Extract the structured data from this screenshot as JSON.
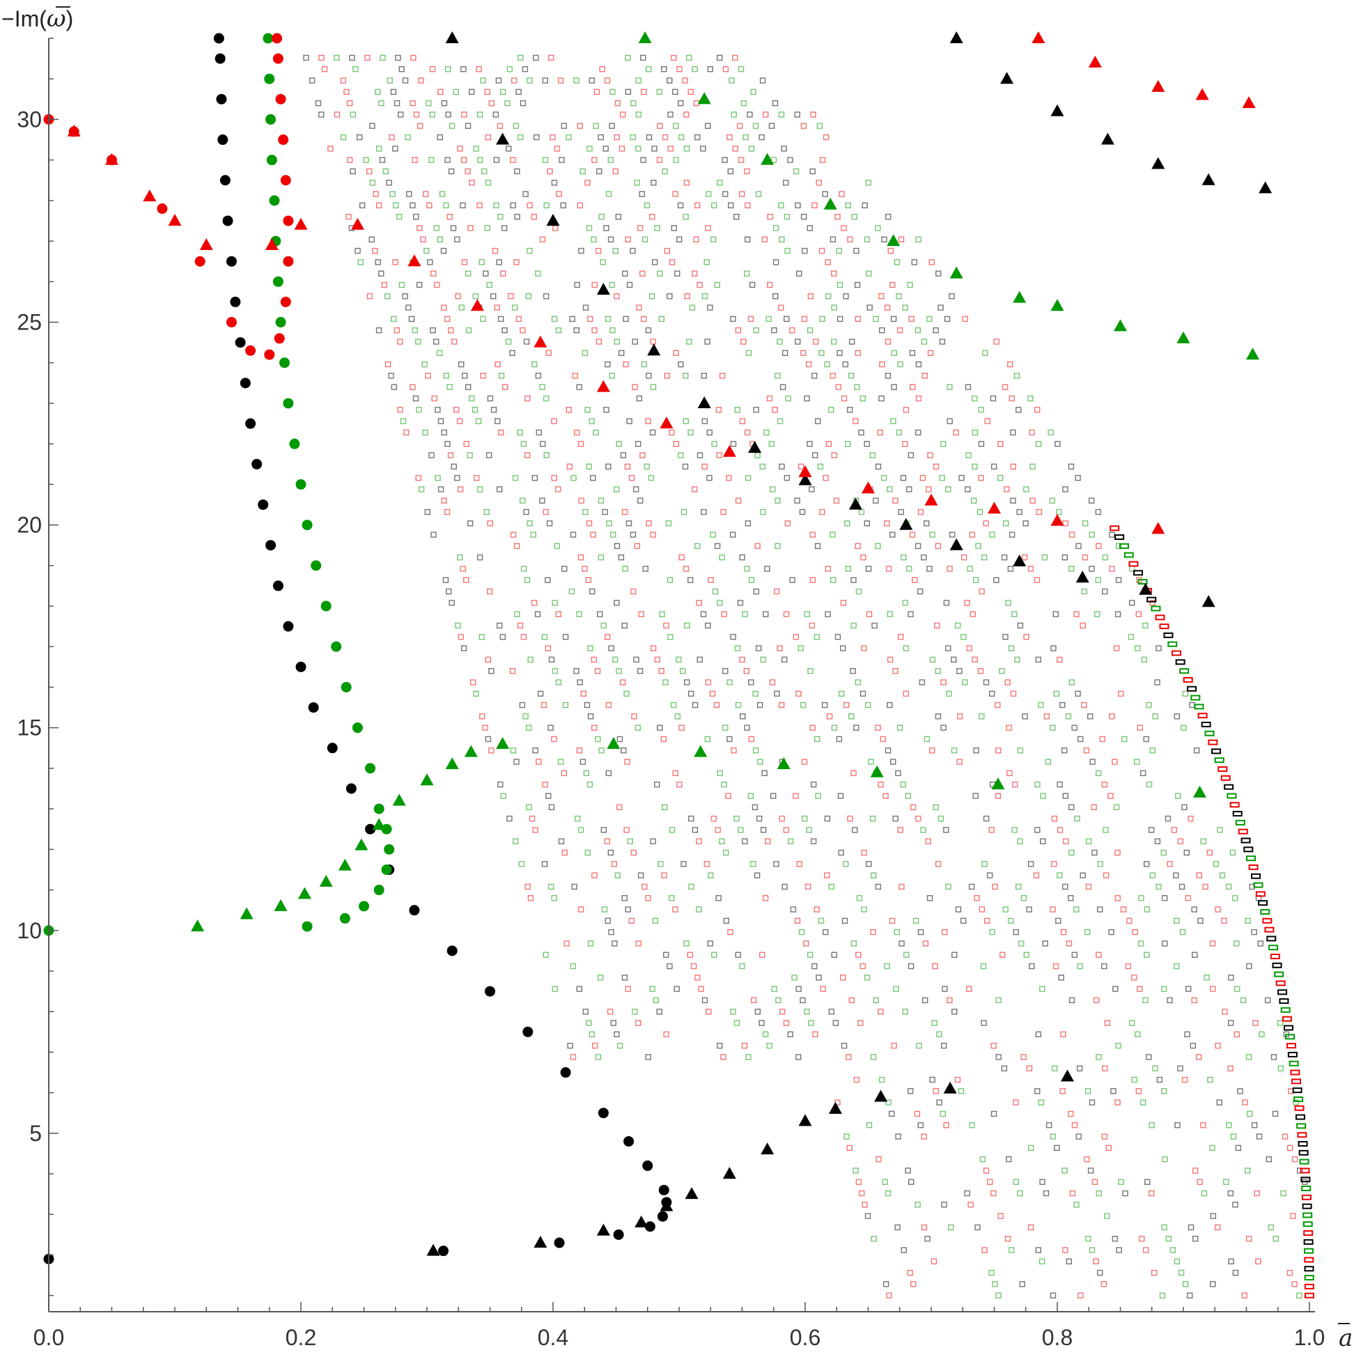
{
  "chart_data": {
    "type": "scatter",
    "title": "",
    "xlabel": "a",
    "ylabel_prefix": "−Im(",
    "ylabel_symbol": "ω",
    "ylabel_suffix": ")",
    "xlim": [
      0,
      1.0
    ],
    "ylim": [
      0.6,
      32
    ],
    "x_ticks": [
      {
        "value": 0.0,
        "label": "0.0"
      },
      {
        "value": 0.2,
        "label": "0.2"
      },
      {
        "value": 0.4,
        "label": "0.4"
      },
      {
        "value": 0.6,
        "label": "0.6"
      },
      {
        "value": 0.8,
        "label": "0.8"
      },
      {
        "value": 1.0,
        "label": "1.0"
      }
    ],
    "y_ticks": [
      {
        "value": 5,
        "label": "5"
      },
      {
        "value": 10,
        "label": "10"
      },
      {
        "value": 15,
        "label": "15"
      },
      {
        "value": 20,
        "label": "20"
      },
      {
        "value": 25,
        "label": "25"
      },
      {
        "value": 30,
        "label": "30"
      }
    ],
    "grid": false,
    "colors": {
      "black": "#000000",
      "red": "#ee0000",
      "green": "#009900",
      "axis": "#555555"
    },
    "series": [
      {
        "marker": "circle",
        "color": "#000000",
        "points": [
          [
            0.0,
            1.9
          ],
          [
            0.313,
            2.1
          ],
          [
            0.405,
            2.3
          ],
          [
            0.452,
            2.5
          ],
          [
            0.477,
            2.7
          ],
          [
            0.487,
            2.95
          ],
          [
            0.49,
            3.3
          ],
          [
            0.488,
            3.6
          ],
          [
            0.475,
            4.2
          ],
          [
            0.46,
            4.8
          ],
          [
            0.44,
            5.5
          ],
          [
            0.41,
            6.5
          ],
          [
            0.38,
            7.5
          ],
          [
            0.35,
            8.5
          ],
          [
            0.32,
            9.5
          ],
          [
            0.29,
            10.5
          ],
          [
            0.27,
            11.5
          ],
          [
            0.255,
            12.5
          ],
          [
            0.24,
            13.5
          ],
          [
            0.225,
            14.5
          ],
          [
            0.21,
            15.5
          ],
          [
            0.2,
            16.5
          ],
          [
            0.19,
            17.5
          ],
          [
            0.182,
            18.5
          ],
          [
            0.176,
            19.5
          ],
          [
            0.17,
            20.5
          ],
          [
            0.165,
            21.5
          ],
          [
            0.16,
            22.5
          ],
          [
            0.156,
            23.5
          ],
          [
            0.152,
            24.5
          ],
          [
            0.148,
            25.5
          ],
          [
            0.145,
            26.5
          ],
          [
            0.142,
            27.5
          ],
          [
            0.14,
            28.5
          ],
          [
            0.138,
            29.5
          ],
          [
            0.137,
            30.5
          ],
          [
            0.136,
            31.5
          ],
          [
            0.135,
            32.0
          ]
        ]
      },
      {
        "marker": "circle",
        "color": "#009900",
        "points": [
          [
            0.0,
            10.0
          ],
          [
            0.205,
            10.1
          ],
          [
            0.235,
            10.3
          ],
          [
            0.25,
            10.6
          ],
          [
            0.262,
            11.0
          ],
          [
            0.268,
            11.5
          ],
          [
            0.27,
            12.0
          ],
          [
            0.268,
            12.5
          ],
          [
            0.262,
            13.0
          ],
          [
            0.255,
            14.0
          ],
          [
            0.245,
            15.0
          ],
          [
            0.236,
            16.0
          ],
          [
            0.228,
            17.0
          ],
          [
            0.22,
            18.0
          ],
          [
            0.212,
            19.0
          ],
          [
            0.205,
            20.0
          ],
          [
            0.2,
            21.0
          ],
          [
            0.195,
            22.0
          ],
          [
            0.19,
            23.0
          ],
          [
            0.187,
            24.0
          ],
          [
            0.184,
            25.0
          ],
          [
            0.182,
            26.0
          ],
          [
            0.18,
            27.0
          ],
          [
            0.179,
            28.0
          ],
          [
            0.177,
            29.0
          ],
          [
            0.176,
            30.0
          ],
          [
            0.175,
            31.0
          ],
          [
            0.174,
            32.0
          ]
        ]
      },
      {
        "marker": "circle",
        "color": "#ee0000",
        "points": [
          [
            0.0,
            30.0
          ],
          [
            0.02,
            29.7
          ],
          [
            0.05,
            29.0
          ],
          [
            0.09,
            27.8
          ],
          [
            0.12,
            26.5
          ],
          [
            0.145,
            25.0
          ],
          [
            0.16,
            24.3
          ],
          [
            0.175,
            24.2
          ],
          [
            0.183,
            24.6
          ],
          [
            0.188,
            25.5
          ],
          [
            0.19,
            26.5
          ],
          [
            0.19,
            27.5
          ],
          [
            0.188,
            28.5
          ],
          [
            0.186,
            29.5
          ],
          [
            0.184,
            30.5
          ],
          [
            0.182,
            31.5
          ],
          [
            0.181,
            32.0
          ]
        ]
      },
      {
        "marker": "triangle",
        "color": "#000000",
        "points": [
          [
            0.305,
            2.1
          ],
          [
            0.39,
            2.3
          ],
          [
            0.44,
            2.6
          ],
          [
            0.47,
            2.8
          ],
          [
            0.49,
            3.2
          ],
          [
            0.51,
            3.5
          ],
          [
            0.54,
            4.0
          ],
          [
            0.57,
            4.6
          ],
          [
            0.6,
            5.3
          ],
          [
            0.624,
            5.6
          ],
          [
            0.66,
            5.9
          ],
          [
            0.715,
            6.1
          ],
          [
            0.808,
            6.4
          ],
          [
            0.32,
            32.0
          ],
          [
            0.36,
            29.5
          ],
          [
            0.4,
            27.5
          ],
          [
            0.44,
            25.8
          ],
          [
            0.48,
            24.3
          ],
          [
            0.52,
            23.0
          ],
          [
            0.56,
            21.9
          ],
          [
            0.6,
            21.1
          ],
          [
            0.64,
            20.5
          ],
          [
            0.68,
            20.0
          ],
          [
            0.72,
            19.5
          ],
          [
            0.77,
            19.1
          ],
          [
            0.82,
            18.7
          ],
          [
            0.87,
            18.4
          ],
          [
            0.92,
            18.1
          ],
          [
            0.72,
            32.0
          ],
          [
            0.76,
            31.0
          ],
          [
            0.8,
            30.2
          ],
          [
            0.84,
            29.5
          ],
          [
            0.88,
            28.9
          ],
          [
            0.92,
            28.5
          ],
          [
            0.965,
            28.3
          ]
        ]
      },
      {
        "marker": "triangle",
        "color": "#009900",
        "points": [
          [
            0.118,
            10.1
          ],
          [
            0.157,
            10.4
          ],
          [
            0.184,
            10.6
          ],
          [
            0.203,
            10.9
          ],
          [
            0.22,
            11.2
          ],
          [
            0.235,
            11.6
          ],
          [
            0.248,
            12.1
          ],
          [
            0.262,
            12.6
          ],
          [
            0.278,
            13.2
          ],
          [
            0.3,
            13.7
          ],
          [
            0.32,
            14.1
          ],
          [
            0.335,
            14.4
          ],
          [
            0.36,
            14.6
          ],
          [
            0.448,
            14.6
          ],
          [
            0.517,
            14.4
          ],
          [
            0.583,
            14.1
          ],
          [
            0.657,
            13.9
          ],
          [
            0.753,
            13.6
          ],
          [
            0.913,
            13.4
          ],
          [
            0.473,
            32.0
          ],
          [
            0.52,
            30.5
          ],
          [
            0.57,
            29.0
          ],
          [
            0.62,
            27.9
          ],
          [
            0.67,
            27.0
          ],
          [
            0.72,
            26.2
          ],
          [
            0.77,
            25.6
          ],
          [
            0.8,
            25.4
          ],
          [
            0.85,
            24.9
          ],
          [
            0.9,
            24.6
          ],
          [
            0.955,
            24.2
          ]
        ]
      },
      {
        "marker": "triangle",
        "color": "#ee0000",
        "points": [
          [
            0.02,
            29.7
          ],
          [
            0.05,
            29.0
          ],
          [
            0.08,
            28.1
          ],
          [
            0.1,
            27.5
          ],
          [
            0.125,
            26.9
          ],
          [
            0.177,
            26.9
          ],
          [
            0.2,
            27.4
          ],
          [
            0.245,
            27.4
          ],
          [
            0.29,
            26.5
          ],
          [
            0.34,
            25.4
          ],
          [
            0.39,
            24.5
          ],
          [
            0.44,
            23.4
          ],
          [
            0.49,
            22.5
          ],
          [
            0.54,
            21.8
          ],
          [
            0.6,
            21.3
          ],
          [
            0.65,
            20.9
          ],
          [
            0.7,
            20.6
          ],
          [
            0.75,
            20.4
          ],
          [
            0.8,
            20.1
          ],
          [
            0.88,
            19.9
          ],
          [
            0.785,
            32.0
          ],
          [
            0.83,
            31.4
          ],
          [
            0.88,
            30.8
          ],
          [
            0.915,
            30.6
          ],
          [
            0.952,
            30.4
          ]
        ]
      }
    ],
    "continuum": {
      "marker": "hollow-square",
      "colors": [
        "#000000",
        "#ee0000",
        "#009900"
      ],
      "boundary_x_at_ymax": 0.2,
      "boundary_x_at_ymin": 1.0
    }
  }
}
